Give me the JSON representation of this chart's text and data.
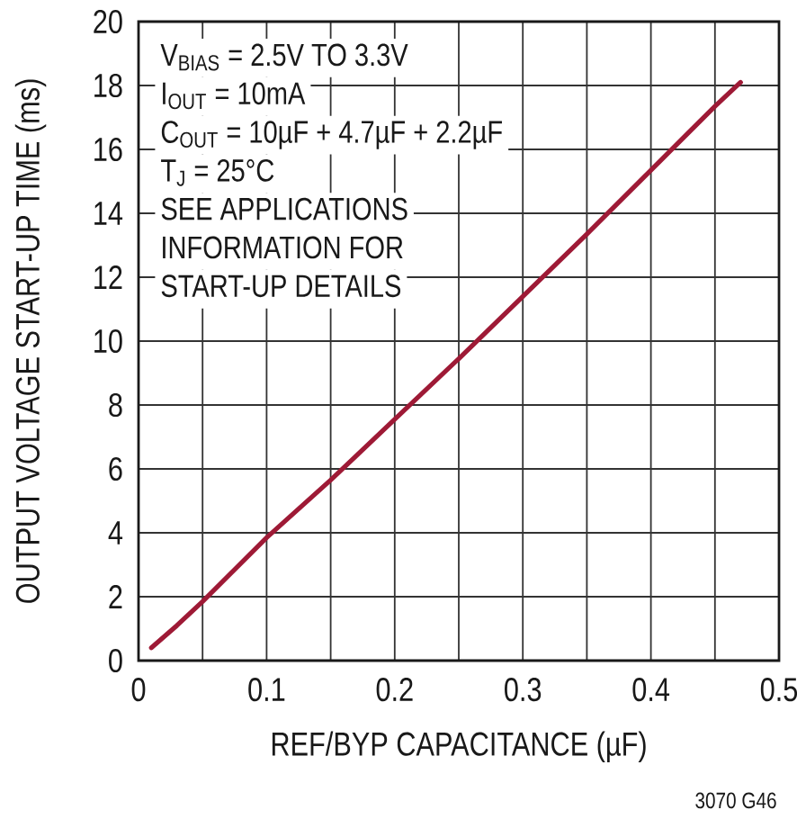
{
  "chart_data": {
    "type": "line",
    "xlabel": "REF/BYP CAPACITANCE (µF)",
    "ylabel": "OUTPUT VOLTAGE START-UP TIME (ms)",
    "x": [
      0.01,
      0.03,
      0.05,
      0.1,
      0.15,
      0.2,
      0.25,
      0.3,
      0.35,
      0.4,
      0.45,
      0.47
    ],
    "series": [
      {
        "color": "#9e1a36",
        "values": [
          0.4,
          1.1,
          1.85,
          3.85,
          5.65,
          7.55,
          9.45,
          11.4,
          13.35,
          15.35,
          17.35,
          18.1
        ]
      }
    ],
    "xlim": [
      0,
      0.5
    ],
    "ylim": [
      0,
      20
    ],
    "xticks": [
      0,
      {
        "value": 0.05,
        "label": null
      },
      0.1,
      {
        "value": 0.15,
        "label": null
      },
      0.2,
      {
        "value": 0.25,
        "label": null
      },
      0.3,
      {
        "value": 0.35,
        "label": null
      },
      0.4,
      {
        "value": 0.45,
        "label": null
      },
      0.5
    ],
    "yticks": [
      0,
      2,
      4,
      6,
      8,
      10,
      12,
      14,
      16,
      18,
      20
    ],
    "grid": true,
    "line_style": "solid",
    "annotations": [
      "V$_{BIAS}$ = 2.5V TO 3.3V",
      "I$_{OUT}$ = 10mA",
      "C$_{OUT}$ = 10µF + 4.7µF + 2.2µF",
      "T$_{J}$ = 25°C",
      "SEE APPLICATIONS",
      "INFORMATION FOR",
      "START-UP DETAILS",
      "3070 G46"
    ]
  }
}
